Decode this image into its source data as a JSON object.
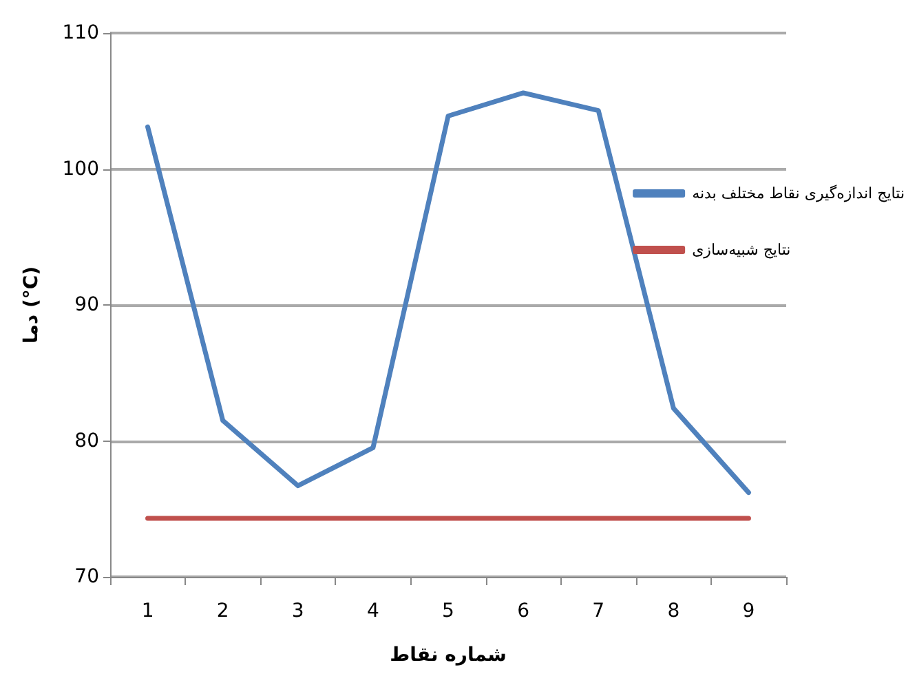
{
  "chart_data": {
    "type": "line",
    "xlabel": "شماره نقاط",
    "ylabel": "دما (°C)",
    "categories": [
      "1",
      "2",
      "3",
      "4",
      "5",
      "6",
      "7",
      "8",
      "9"
    ],
    "series": [
      {
        "name": "نتایج اندازه‌گیری نقاط مختلف بدنه",
        "color": "#4f81bd",
        "values": [
          103.1,
          81.5,
          76.7,
          79.5,
          103.9,
          105.6,
          104.3,
          82.4,
          76.2
        ]
      },
      {
        "name": "نتایج شبیه‌سازی",
        "color": "#c0504d",
        "values": [
          74.3,
          74.3,
          74.3,
          74.3,
          74.3,
          74.3,
          74.3,
          74.3,
          74.3
        ]
      }
    ],
    "ylim": [
      70,
      110
    ],
    "yticks": [
      70,
      80,
      90,
      100,
      110
    ],
    "grid": "y",
    "legend": "right",
    "marker": "none",
    "line_style": "solid"
  }
}
